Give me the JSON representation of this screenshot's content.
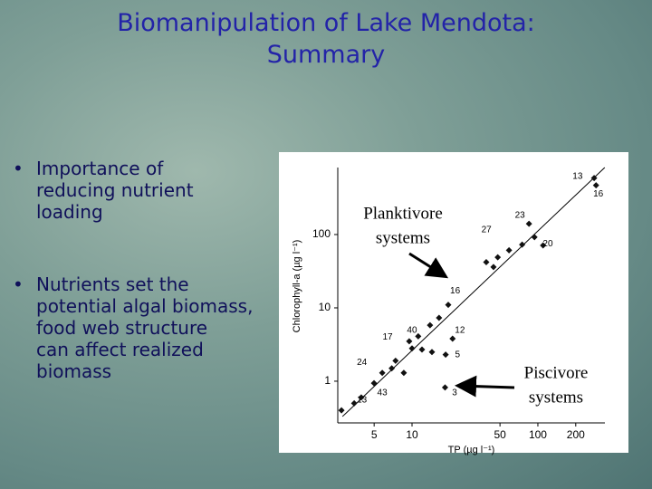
{
  "title_lines": [
    "Biomanipulation of Lake Mendota:",
    "Summary"
  ],
  "bullets": [
    {
      "marker": "•",
      "lines": [
        "Importance of",
        "reducing nutrient",
        "loading"
      ]
    },
    {
      "marker": "•",
      "lines": [
        "Nutrients set the",
        "potential algal biomass,",
        "food web structure",
        "can affect realized",
        "biomass"
      ]
    }
  ],
  "chart_data": {
    "type": "scatter",
    "x_label": "TP (µg l⁻¹)",
    "y_label": "Chlorophyll-a (µg l⁻¹)",
    "log_x": true,
    "log_y": true,
    "grid": false,
    "color": "#111111",
    "xlim": [
      2.57,
      341
    ],
    "ylim": [
      0.27,
      820
    ],
    "xticks": [
      5,
      10,
      50,
      100,
      200
    ],
    "yticks": [
      1,
      10,
      100
    ],
    "x": [
      2.75,
      3.47,
      3.95,
      4.99,
      5.8,
      6.9,
      7.4,
      8.6,
      10,
      9.5,
      11.2,
      12,
      13.9,
      16.4,
      19.4,
      21,
      14.4,
      18.5,
      18.3,
      38.9,
      44.4,
      48,
      59,
      75,
      85,
      94,
      110,
      280,
      290
    ],
    "y": [
      0.4,
      0.5,
      0.6,
      0.94,
      1.3,
      1.5,
      1.9,
      1.3,
      2.8,
      3.5,
      4.1,
      2.7,
      5.8,
      7.3,
      11,
      3.8,
      2.5,
      2.3,
      0.82,
      42,
      36,
      49,
      61,
      73,
      140,
      92,
      71,
      590,
      470
    ],
    "fit_line": {
      "x": [
        2.8,
        340
      ],
      "y": [
        0.33,
        820
      ]
    },
    "point_labels": [
      {
        "text": "13",
        "x": 207,
        "y": 616
      },
      {
        "text": "16",
        "x": 302,
        "y": 355
      },
      {
        "text": "23",
        "x": 72,
        "y": 183
      },
      {
        "text": "27",
        "x": 39,
        "y": 115
      },
      {
        "text": "20",
        "x": 120,
        "y": 75
      },
      {
        "text": "16",
        "x": 22,
        "y": 17
      },
      {
        "text": "40",
        "x": 10,
        "y": 4.9
      },
      {
        "text": "12",
        "x": 24,
        "y": 4.9
      },
      {
        "text": "17",
        "x": 6.4,
        "y": 4.0
      },
      {
        "text": "24",
        "x": 4.0,
        "y": 1.8
      },
      {
        "text": "5",
        "x": 23,
        "y": 2.3
      },
      {
        "text": "43",
        "x": 5.8,
        "y": 0.69
      },
      {
        "text": "3",
        "x": 21.8,
        "y": 0.69
      },
      {
        "text": "13",
        "x": 4.0,
        "y": 0.55
      }
    ],
    "annotations": [
      {
        "lines": [
          "Planktivore",
          "systems"
        ]
      },
      {
        "lines": [
          "Piscivore",
          "systems"
        ]
      }
    ]
  }
}
